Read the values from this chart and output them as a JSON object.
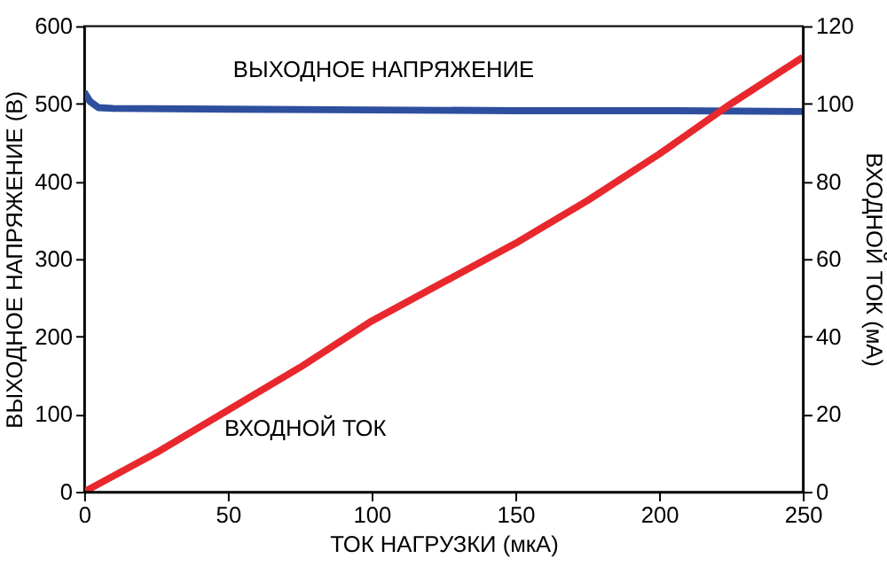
{
  "chart_data": {
    "type": "line",
    "xlabel": "ТОК НАГРУЗКИ (мкА)",
    "ylabel": "ВЫХОДНОЕ НАПРЯЖЕНИЕ (В)",
    "y2label": "ВХОДНОЙ ТОК (мА)",
    "xlim": [
      0,
      250
    ],
    "xticks": [
      0,
      50,
      100,
      150,
      200,
      250
    ],
    "ylim": [
      0,
      600
    ],
    "yticks": [
      0,
      100,
      200,
      300,
      400,
      500,
      600
    ],
    "y2lim": [
      0,
      120
    ],
    "y2ticks": [
      0,
      20,
      40,
      60,
      80,
      100,
      120
    ],
    "grid": false,
    "series": [
      {
        "name": "ВЫХОДНОЕ НАПРЯЖЕНИЕ",
        "color": "#2e4f9e",
        "x": [
          0,
          2,
          5,
          10,
          50,
          100,
          150,
          200,
          250
        ],
        "values": [
          515,
          503,
          495,
          494,
          493,
          492,
          491,
          491,
          490
        ]
      },
      {
        "name": "ВХОДНОЙ ТОК",
        "color": "#e8282d",
        "axis": "y2",
        "x": [
          0,
          25,
          50,
          75,
          100,
          125,
          150,
          175,
          200,
          225,
          250
        ],
        "values": [
          0,
          10,
          21,
          32,
          44,
          54,
          64,
          75,
          87,
          100,
          112
        ]
      }
    ]
  }
}
